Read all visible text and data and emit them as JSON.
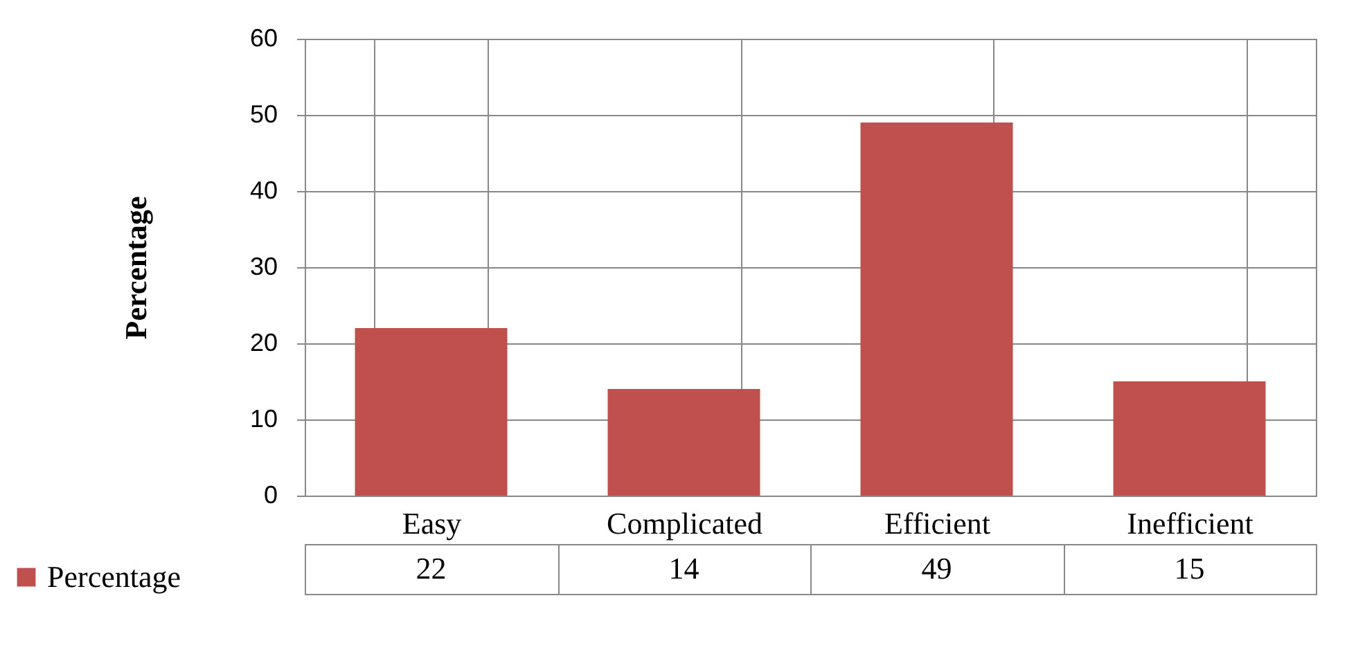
{
  "chart_data": {
    "type": "bar",
    "ylabel": "Percentage",
    "categories": [
      "Easy",
      "Complicated",
      "Efficient",
      "Inefficient"
    ],
    "series": [
      {
        "name": "Percentage",
        "color": "#c0504d",
        "values": [
          22,
          14,
          49,
          15
        ]
      }
    ],
    "ylim": [
      0,
      60
    ],
    "yticks": [
      0,
      10,
      20,
      30,
      40,
      50,
      60
    ],
    "grid": "y",
    "legend": "bottom left",
    "data_labels": true
  }
}
